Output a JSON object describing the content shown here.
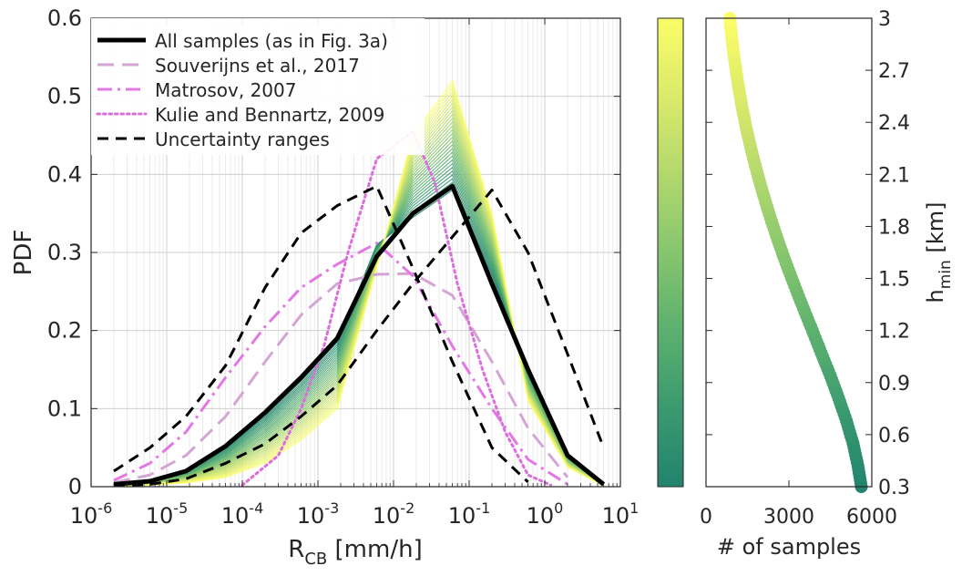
{
  "chart_data": [
    {
      "type": "line",
      "xscale": "log",
      "xlabel": {
        "main": "R",
        "sub": "CB",
        "unit": " [mm/h]"
      },
      "ylabel": "PDF",
      "xlim": [
        1e-06,
        10
      ],
      "ylim": [
        0,
        0.6
      ],
      "xticks": [
        1e-06,
        1e-05,
        0.0001,
        0.001,
        0.01,
        0.1,
        1,
        10
      ],
      "xtick_labels": [
        {
          "base": "10",
          "exp": "-6"
        },
        {
          "base": "10",
          "exp": "-5"
        },
        {
          "base": "10",
          "exp": "-4"
        },
        {
          "base": "10",
          "exp": "-3"
        },
        {
          "base": "10",
          "exp": "-2"
        },
        {
          "base": "10",
          "exp": "-1"
        },
        {
          "base": "10",
          "exp": "0"
        },
        {
          "base": "10",
          "exp": "1"
        }
      ],
      "yticks": [
        0,
        0.1,
        0.2,
        0.3,
        0.4,
        0.5,
        0.6
      ],
      "ytick_labels": [
        "0",
        "0.1",
        "0.2",
        "0.3",
        "0.4",
        "0.5",
        "0.6"
      ],
      "grid": true,
      "legend_position": "top-left",
      "series": [
        {
          "name": "All samples (as in Fig. 3a)",
          "color": "#000000",
          "style": "solid",
          "x": [
            2e-06,
            6e-06,
            1.8e-05,
            6e-05,
            0.0002,
            0.0006,
            0.0018,
            0.006,
            0.018,
            0.06,
            0.2,
            0.6,
            2,
            6
          ],
          "y": [
            0.003,
            0.007,
            0.02,
            0.052,
            0.095,
            0.14,
            0.19,
            0.295,
            0.35,
            0.385,
            0.26,
            0.15,
            0.04,
            0.003
          ]
        },
        {
          "name": "Souverijns et al., 2017",
          "color": "#d4a5d4",
          "style": "long-dash",
          "x": [
            2e-06,
            6e-06,
            1.8e-05,
            6e-05,
            0.0002,
            0.0006,
            0.0018,
            0.006,
            0.018,
            0.06,
            0.2,
            0.6,
            2
          ],
          "y": [
            0.005,
            0.015,
            0.04,
            0.09,
            0.16,
            0.22,
            0.26,
            0.272,
            0.273,
            0.245,
            0.16,
            0.075,
            0.012
          ]
        },
        {
          "name": "Matrosov, 2007",
          "color": "#e377e3",
          "style": "dash-dot",
          "x": [
            2e-06,
            6e-06,
            1.8e-05,
            6e-05,
            0.0002,
            0.0006,
            0.0018,
            0.006,
            0.018,
            0.06,
            0.2,
            0.6,
            2
          ],
          "y": [
            0.008,
            0.03,
            0.07,
            0.14,
            0.205,
            0.255,
            0.285,
            0.312,
            0.27,
            0.18,
            0.1,
            0.035,
            0.003
          ]
        },
        {
          "name": "Kulie and Bennartz, 2009",
          "color": "#dc6ddc",
          "style": "dotted",
          "x": [
            0.0001,
            0.0003,
            0.0006,
            0.0012,
            0.0025,
            0.006,
            0.018,
            0.035,
            0.07,
            0.15,
            0.3,
            0.6,
            1.2
          ],
          "y": [
            0.002,
            0.04,
            0.1,
            0.18,
            0.3,
            0.42,
            0.455,
            0.39,
            0.26,
            0.15,
            0.07,
            0.015,
            0.002
          ]
        },
        {
          "name": "Uncertainty ranges",
          "color": "#000000",
          "style": "dashed",
          "x": [
            2e-06,
            6e-06,
            1.8e-05,
            6e-05,
            0.0002,
            0.0006,
            0.0018,
            0.006,
            0.018,
            0.06,
            0.2,
            0.6
          ],
          "y": [
            0.02,
            0.05,
            0.09,
            0.155,
            0.255,
            0.325,
            0.36,
            0.385,
            0.28,
            0.16,
            0.05,
            0.006
          ]
        },
        {
          "name": "",
          "color": "#000000",
          "style": "dashed",
          "x": [
            2e-06,
            6e-06,
            1.8e-05,
            6e-05,
            0.0002,
            0.0006,
            0.0018,
            0.006,
            0.018,
            0.06,
            0.2,
            0.6,
            2,
            6
          ],
          "y": [
            0.001,
            0.003,
            0.01,
            0.03,
            0.055,
            0.09,
            0.13,
            0.2,
            0.26,
            0.32,
            0.38,
            0.3,
            0.17,
            0.05
          ]
        }
      ],
      "sensitivity_curves": {
        "count": 30,
        "x": [
          2e-06,
          6e-06,
          1.8e-05,
          6e-05,
          0.0002,
          0.0006,
          0.0018,
          0.006,
          0.018,
          0.06,
          0.2,
          0.6,
          2,
          6
        ],
        "y_lowest_hmin": [
          0.003,
          0.007,
          0.02,
          0.05,
          0.09,
          0.135,
          0.185,
          0.31,
          0.345,
          0.38,
          0.27,
          0.15,
          0.04,
          0.003
        ],
        "y_highest_hmin": [
          0.001,
          0.002,
          0.005,
          0.012,
          0.03,
          0.06,
          0.1,
          0.28,
          0.45,
          0.52,
          0.35,
          0.11,
          0.025,
          0.001
        ]
      }
    },
    {
      "type": "colorbar",
      "colormap": [
        "#22836e",
        "#3a9a6f",
        "#5cb06f",
        "#86c56e",
        "#b2d86d",
        "#dbea6a",
        "#fafd68"
      ],
      "clim": [
        0.3,
        3
      ]
    },
    {
      "type": "scatter",
      "xlabel": "# of samples",
      "ylabel": {
        "main": "h",
        "sub": "min",
        "unit": " [km]"
      },
      "xlim": [
        0,
        6000
      ],
      "ylim": [
        0.3,
        3
      ],
      "xticks": [
        0,
        3000,
        6000
      ],
      "xtick_labels": [
        "0",
        "3000",
        "6000"
      ],
      "yticks": [
        0.3,
        0.6,
        0.9,
        1.2,
        1.5,
        1.8,
        2.1,
        2.4,
        2.7,
        3
      ],
      "ytick_labels": [
        "0.3",
        "0.6",
        "0.9",
        "1.2",
        "1.5",
        "1.8",
        "2.1",
        "2.4",
        "2.7",
        "3"
      ],
      "x": [
        5620,
        5500,
        5320,
        5080,
        4800,
        4500,
        4170,
        3850,
        3520,
        3200,
        2890,
        2600,
        2330,
        2080,
        1850,
        1640,
        1450,
        1290,
        1150,
        1030,
        930,
        860
      ],
      "y": [
        0.3,
        0.42,
        0.55,
        0.68,
        0.81,
        0.94,
        1.07,
        1.2,
        1.33,
        1.46,
        1.59,
        1.72,
        1.85,
        1.98,
        2.11,
        2.24,
        2.37,
        2.5,
        2.63,
        2.76,
        2.89,
        3.0
      ]
    }
  ]
}
